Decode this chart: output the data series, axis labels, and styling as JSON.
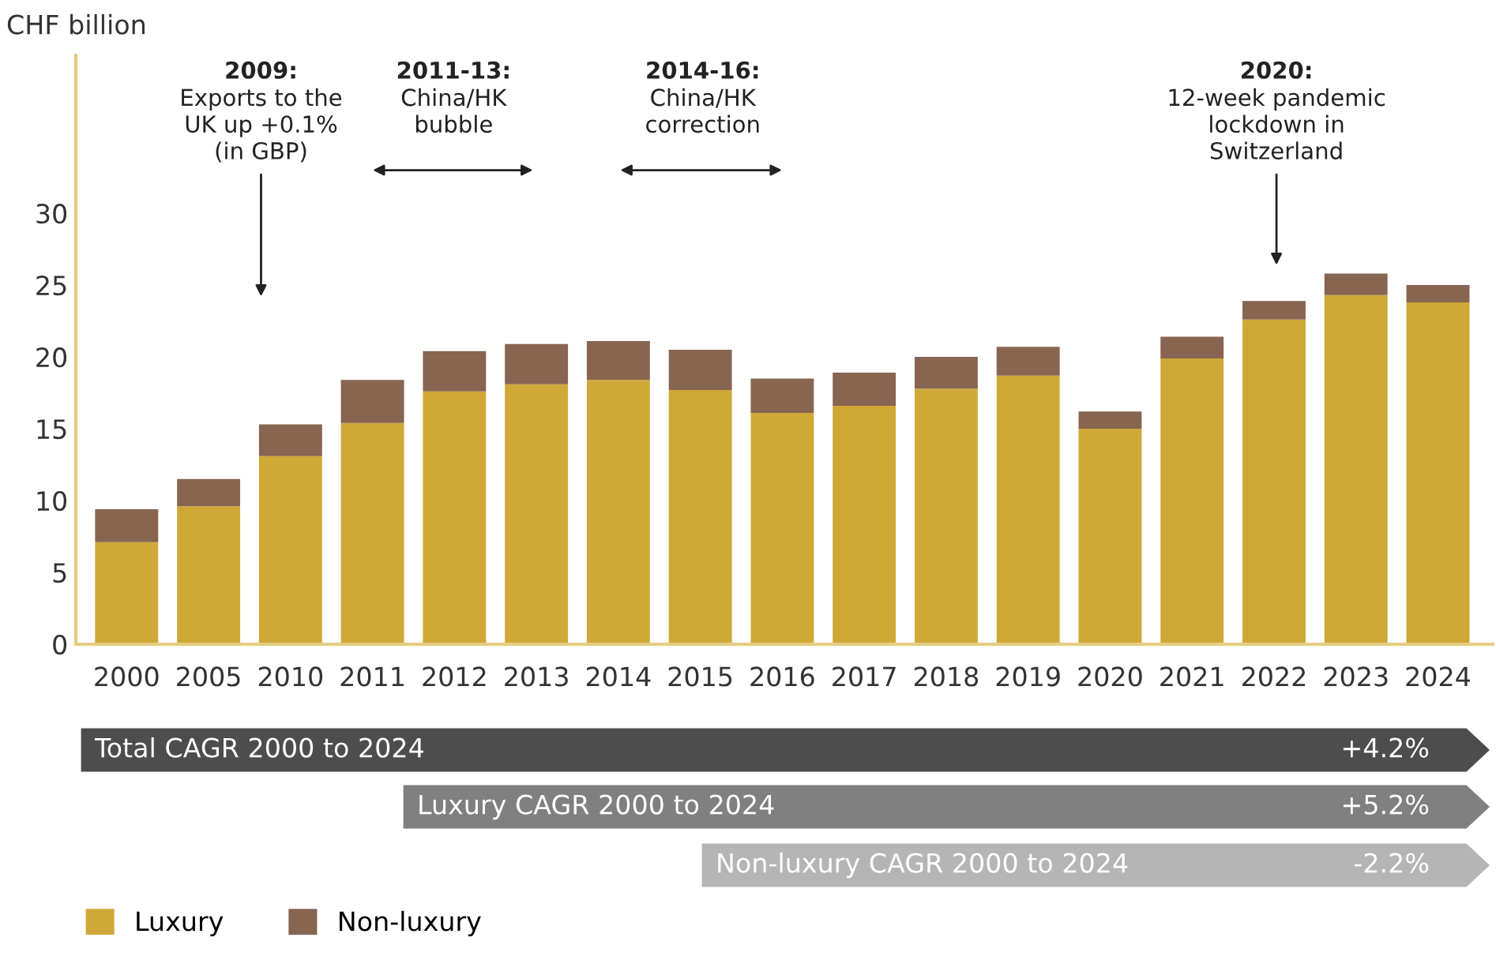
{
  "chart_data": {
    "type": "bar",
    "stacked": true,
    "ylabel": "CHF billion",
    "categories": [
      "2000",
      "2005",
      "2010",
      "2011",
      "2012",
      "2013",
      "2014",
      "2015",
      "2016",
      "2017",
      "2018",
      "2019",
      "2020",
      "2021",
      "2022",
      "2023",
      "2024"
    ],
    "series": [
      {
        "name": "Luxury",
        "color": "#cfa838",
        "values": [
          7.1,
          9.6,
          13.1,
          15.4,
          17.6,
          18.1,
          18.4,
          17.7,
          16.1,
          16.6,
          17.8,
          18.7,
          15.0,
          19.9,
          22.6,
          24.3,
          23.8
        ]
      },
      {
        "name": "Non-luxury",
        "color": "#876550",
        "values": [
          2.3,
          1.9,
          2.2,
          3.0,
          2.8,
          2.8,
          2.7,
          2.8,
          2.4,
          2.3,
          2.2,
          2.0,
          1.2,
          1.5,
          1.3,
          1.5,
          1.2
        ]
      }
    ],
    "ylim": [
      0,
      41
    ],
    "yticks": [
      0,
      5,
      10,
      15,
      20,
      25,
      30
    ],
    "grid": false,
    "legend": "bottom left",
    "annotations": [
      "2009:\nExports to the\nUK up +0.1%\n(in GBP)",
      "2011-13:\nChina/HK\nbubble",
      "2014-16:\nChina/HK\ncorrection",
      "2020:\n12-week pandemic\nlockdown in\nSwitzerland",
      "Total CAGR 2000 to 2024",
      "+4.2%",
      "Luxury CAGR 2000 to 2024",
      "+5.2%",
      "Non-luxury CAGR 2000 to 2024",
      "-2.2%"
    ]
  }
}
